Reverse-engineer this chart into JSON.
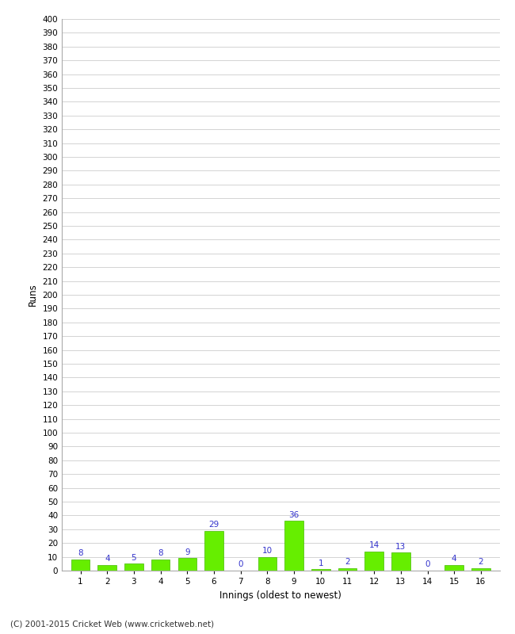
{
  "xlabel": "Innings (oldest to newest)",
  "ylabel": "Runs",
  "innings": [
    1,
    2,
    3,
    4,
    5,
    6,
    7,
    8,
    9,
    10,
    11,
    12,
    13,
    14,
    15,
    16
  ],
  "values": [
    8,
    4,
    5,
    8,
    9,
    29,
    0,
    10,
    36,
    1,
    2,
    14,
    13,
    0,
    4,
    2
  ],
  "bar_color": "#66ee00",
  "bar_edge_color": "#44bb00",
  "label_color": "#3333cc",
  "ylim": [
    0,
    400
  ],
  "background_color": "#ffffff",
  "grid_color": "#cccccc",
  "footer": "(C) 2001-2015 Cricket Web (www.cricketweb.net)"
}
